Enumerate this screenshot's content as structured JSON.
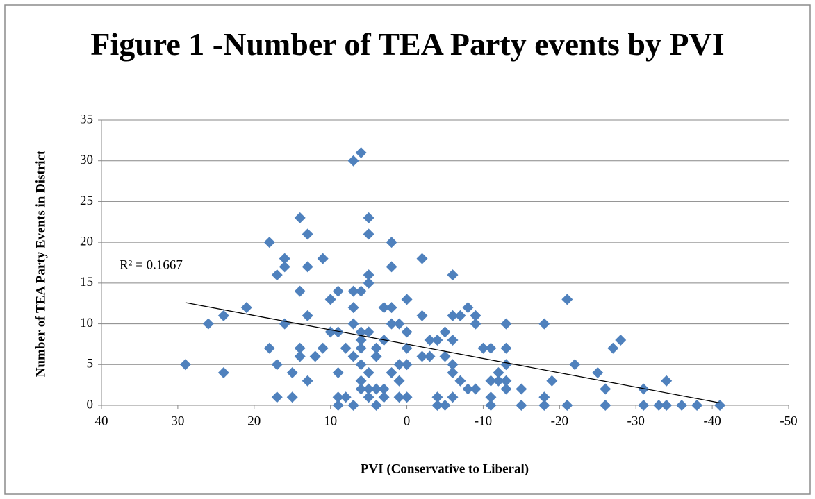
{
  "chart_data": {
    "type": "scatter",
    "title": "Figure 1 -Number of TEA Party events by PVI",
    "x_label": "PVI (Conservative to Liberal)",
    "y_label": "Number of TEA Party Events in District",
    "annotation": "R² = 0.1667",
    "color": "#4f81bd",
    "xlim": [
      40,
      -50
    ],
    "xticks": [
      40,
      30,
      20,
      10,
      0,
      -10,
      -20,
      -30,
      -40,
      -50
    ],
    "ylim": [
      0,
      35
    ],
    "yticks": [
      0,
      5,
      10,
      15,
      20,
      25,
      30,
      35
    ],
    "grid": true,
    "trendline": {
      "x": [
        29,
        -41
      ],
      "y": [
        12.6,
        0.3
      ]
    },
    "x": [
      29,
      26,
      24,
      24,
      21,
      18,
      18,
      17,
      17,
      17,
      16,
      16,
      16,
      15,
      15,
      14,
      14,
      14,
      14,
      13,
      13,
      13,
      13,
      12,
      11,
      11,
      10,
      10,
      9,
      9,
      9,
      9,
      9,
      8,
      8,
      7,
      6,
      7,
      7,
      7,
      7,
      7,
      6,
      6,
      6,
      6,
      6,
      6,
      6,
      5,
      5,
      5,
      5,
      5,
      5,
      5,
      5,
      4,
      4,
      4,
      4,
      3,
      3,
      3,
      3,
      2,
      2,
      2,
      2,
      2,
      1,
      1,
      1,
      1,
      0,
      0,
      0,
      0,
      0,
      -2,
      -2,
      -2,
      -3,
      -3,
      -4,
      -4,
      -4,
      -5,
      -5,
      -5,
      -6,
      -6,
      -6,
      -6,
      -6,
      -6,
      -7,
      -7,
      -8,
      -8,
      -9,
      -9,
      -9,
      -10,
      -11,
      -11,
      -11,
      -11,
      -12,
      -12,
      -13,
      -13,
      -13,
      -13,
      -13,
      -15,
      -15,
      -18,
      -18,
      -18,
      -19,
      -21,
      -21,
      -22,
      -25,
      -26,
      -26,
      -27,
      -28,
      -31,
      -31,
      -33,
      -34,
      -34,
      -36,
      -38,
      -41
    ],
    "y": [
      5,
      10,
      11,
      4,
      12,
      20,
      7,
      5,
      1,
      16,
      17,
      18,
      10,
      4,
      1,
      23,
      14,
      7,
      6,
      21,
      17,
      11,
      3,
      6,
      7,
      18,
      13,
      9,
      14,
      9,
      4,
      1,
      0,
      7,
      1,
      30,
      31,
      14,
      12,
      10,
      6,
      0,
      14,
      9,
      8,
      7,
      5,
      3,
      2,
      23,
      21,
      16,
      15,
      9,
      4,
      2,
      1,
      6,
      7,
      0,
      2,
      12,
      8,
      2,
      1,
      20,
      17,
      12,
      10,
      4,
      10,
      5,
      3,
      1,
      13,
      9,
      7,
      5,
      1,
      18,
      11,
      6,
      8,
      6,
      8,
      1,
      0,
      9,
      6,
      0,
      16,
      11,
      8,
      5,
      4,
      1,
      11,
      3,
      12,
      2,
      11,
      10,
      2,
      7,
      7,
      3,
      1,
      0,
      4,
      3,
      10,
      7,
      5,
      3,
      2,
      2,
      0,
      10,
      1,
      0,
      3,
      13,
      0,
      5,
      4,
      2,
      0,
      7,
      8,
      2,
      0,
      0,
      3,
      0,
      0,
      0,
      0
    ]
  }
}
